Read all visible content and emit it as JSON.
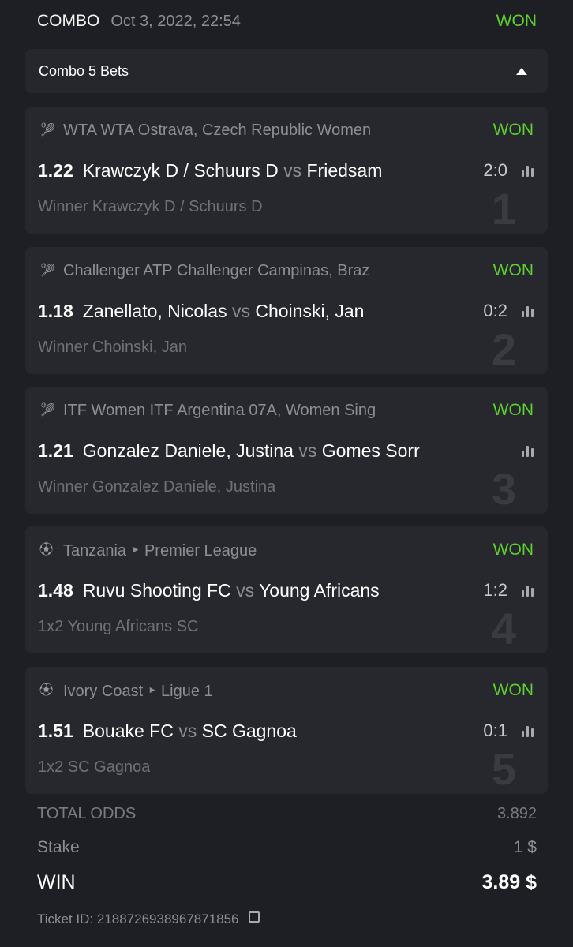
{
  "header": {
    "type": "COMBO",
    "date": "Oct 3, 2022, 22:54",
    "status": "WON"
  },
  "combo": {
    "label": "Combo 5 Bets",
    "toggle_icon": "triangle-up-icon"
  },
  "colors": {
    "won": "#5fd12e",
    "background": "#1e1f24",
    "card": "#27282d"
  },
  "bets": [
    {
      "index": "1",
      "icon": "tennis-icon",
      "category": "WTA WTA Ostrava, Czech Republic Women",
      "status": "WON",
      "odds": "1.22",
      "team1": "Krawczyk D / Schuurs D",
      "vs": "vs",
      "team2": "Friedsam",
      "score": "2:0",
      "pick": "Winner Krawczyk D / Schuurs D"
    },
    {
      "index": "2",
      "icon": "tennis-icon",
      "category": "Challenger ATP Challenger Campinas, Braz",
      "status": "WON",
      "odds": "1.18",
      "team1": "Zanellato, Nicolas",
      "vs": "vs",
      "team2": "Choinski, Jan",
      "score": "0:2",
      "pick": "Winner Choinski, Jan"
    },
    {
      "index": "3",
      "icon": "tennis-icon",
      "category": "ITF Women ITF Argentina 07A, Women Sing",
      "status": "WON",
      "odds": "1.21",
      "team1": "Gonzalez Daniele, Justina",
      "vs": "vs",
      "team2": "Gomes Sorr",
      "score": "",
      "pick": "Winner Gonzalez Daniele, Justina"
    },
    {
      "index": "4",
      "icon": "soccer-ball-icon",
      "category": "Tanzania ‣ Premier League",
      "status": "WON",
      "odds": "1.48",
      "team1": "Ruvu Shooting FC",
      "vs": "vs",
      "team2": "Young Africans",
      "score": "1:2",
      "pick": "1x2 Young Africans SC"
    },
    {
      "index": "5",
      "icon": "soccer-ball-icon",
      "category": "Ivory Coast ‣ Ligue 1",
      "status": "WON",
      "odds": "1.51",
      "team1": "Bouake FC",
      "vs": "vs",
      "team2": "SC Gagnoa",
      "score": "0:1",
      "pick": "1x2 SC Gagnoa"
    }
  ],
  "summary": {
    "total_odds_label": "TOTAL ODDS",
    "total_odds": "3.892",
    "stake_label": "Stake",
    "stake": "1 $",
    "win_label": "WIN",
    "win": "3.89 $",
    "ticket_label": "Ticket ID: 2188726938967871856"
  }
}
